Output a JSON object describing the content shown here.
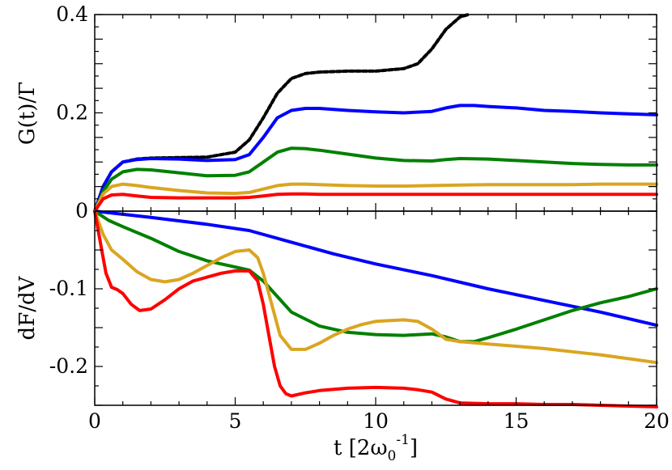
{
  "chart_data": [
    {
      "type": "line",
      "panel": "top",
      "title": "",
      "xlabel": "",
      "ylabel": "G(t)/Γ",
      "xlim": [
        0,
        20
      ],
      "ylim": [
        0,
        0.4
      ],
      "yticks": [
        {
          "value": 0,
          "label": "0"
        },
        {
          "value": 0.2,
          "label": "0.2"
        },
        {
          "value": 0.4,
          "label": "0.4"
        }
      ],
      "series": [
        {
          "name": "black-dotted",
          "color": "#000000",
          "dashed": true,
          "x": [
            0,
            0.3,
            0.6,
            1,
            1.5,
            2,
            3,
            4,
            5,
            5.5,
            6,
            6.5,
            7,
            7.5,
            8,
            9,
            10,
            11,
            11.5,
            12,
            12.5,
            13,
            13.3
          ],
          "y": [
            0,
            0.05,
            0.08,
            0.1,
            0.106,
            0.108,
            0.109,
            0.11,
            0.12,
            0.145,
            0.19,
            0.24,
            0.27,
            0.28,
            0.283,
            0.285,
            0.285,
            0.29,
            0.3,
            0.33,
            0.37,
            0.395,
            0.4
          ]
        },
        {
          "name": "blue",
          "color": "#0000ff",
          "dashed": false,
          "x": [
            0,
            0.3,
            0.6,
            1,
            1.5,
            2,
            3,
            4,
            5,
            5.5,
            6,
            6.5,
            7,
            7.5,
            8,
            9,
            10,
            11,
            12,
            12.5,
            13,
            13.5,
            14,
            15,
            16,
            17,
            18,
            19,
            20
          ],
          "y": [
            0,
            0.05,
            0.08,
            0.1,
            0.105,
            0.107,
            0.106,
            0.103,
            0.105,
            0.115,
            0.15,
            0.19,
            0.205,
            0.209,
            0.209,
            0.205,
            0.202,
            0.2,
            0.203,
            0.21,
            0.215,
            0.215,
            0.213,
            0.21,
            0.205,
            0.203,
            0.2,
            0.198,
            0.196
          ]
        },
        {
          "name": "green",
          "color": "#008000",
          "dashed": false,
          "x": [
            0,
            0.3,
            0.6,
            1,
            1.5,
            2,
            3,
            4,
            5,
            5.5,
            6,
            6.5,
            7,
            7.5,
            8,
            9,
            10,
            11,
            12,
            12.5,
            13,
            14,
            15,
            16,
            17,
            18,
            19,
            20
          ],
          "y": [
            0,
            0.04,
            0.065,
            0.08,
            0.085,
            0.084,
            0.078,
            0.072,
            0.073,
            0.08,
            0.1,
            0.12,
            0.128,
            0.127,
            0.124,
            0.116,
            0.108,
            0.103,
            0.102,
            0.105,
            0.107,
            0.106,
            0.103,
            0.1,
            0.097,
            0.095,
            0.094,
            0.094
          ]
        },
        {
          "name": "gold",
          "color": "#daa520",
          "dashed": false,
          "x": [
            0,
            0.3,
            0.6,
            1,
            1.5,
            2,
            3,
            4,
            5,
            5.5,
            6,
            6.5,
            7,
            7.5,
            8,
            9,
            10,
            11,
            12,
            13,
            14,
            15,
            16,
            17,
            18,
            19,
            20
          ],
          "y": [
            0,
            0.035,
            0.05,
            0.055,
            0.052,
            0.048,
            0.042,
            0.037,
            0.036,
            0.038,
            0.045,
            0.052,
            0.055,
            0.055,
            0.054,
            0.052,
            0.051,
            0.051,
            0.052,
            0.053,
            0.054,
            0.054,
            0.054,
            0.054,
            0.055,
            0.055,
            0.055
          ]
        },
        {
          "name": "red",
          "color": "#ff0000",
          "dashed": false,
          "x": [
            0,
            0.3,
            0.6,
            1,
            1.5,
            2,
            3,
            4,
            5,
            5.5,
            6,
            6.5,
            7,
            7.5,
            8,
            9,
            10,
            11,
            12,
            13,
            14,
            15,
            16,
            17,
            18,
            19,
            20
          ],
          "y": [
            0,
            0.025,
            0.033,
            0.034,
            0.031,
            0.028,
            0.027,
            0.027,
            0.027,
            0.028,
            0.031,
            0.034,
            0.035,
            0.035,
            0.034,
            0.034,
            0.034,
            0.034,
            0.034,
            0.034,
            0.034,
            0.034,
            0.034,
            0.034,
            0.034,
            0.034,
            0.034
          ]
        }
      ]
    },
    {
      "type": "line",
      "panel": "bottom",
      "title": "",
      "xlabel": "t [2ω",
      "xlabel_sub": "0",
      "xlabel_sup": "-1",
      "xlabel_end": "]",
      "ylabel": "dF/dV",
      "xlim": [
        0,
        20
      ],
      "ylim": [
        -0.25,
        0
      ],
      "xticks": [
        {
          "value": 0,
          "label": "0"
        },
        {
          "value": 5,
          "label": "5"
        },
        {
          "value": 10,
          "label": "10"
        },
        {
          "value": 15,
          "label": "15"
        },
        {
          "value": 20,
          "label": "20"
        }
      ],
      "yticks": [
        {
          "value": -0.1,
          "label": "-0.1"
        },
        {
          "value": -0.2,
          "label": "-0.2"
        }
      ],
      "series": [
        {
          "name": "blue",
          "color": "#0000ff",
          "x": [
            0,
            2,
            4,
            5.5,
            7,
            8.5,
            10,
            12,
            14,
            16,
            18,
            20
          ],
          "y": [
            0,
            -0.008,
            -0.017,
            -0.025,
            -0.04,
            -0.055,
            -0.068,
            -0.083,
            -0.1,
            -0.115,
            -0.13,
            -0.147
          ]
        },
        {
          "name": "green",
          "color": "#008000",
          "x": [
            0,
            0.5,
            1,
            2,
            3,
            4,
            5,
            5.5,
            6,
            6.5,
            7,
            8,
            9,
            10,
            11,
            12,
            12.5,
            13,
            13.5,
            14,
            15,
            16,
            17,
            18,
            19,
            20
          ],
          "y": [
            0,
            -0.012,
            -0.02,
            -0.035,
            -0.052,
            -0.064,
            -0.072,
            -0.076,
            -0.09,
            -0.11,
            -0.13,
            -0.148,
            -0.156,
            -0.159,
            -0.16,
            -0.158,
            -0.162,
            -0.168,
            -0.168,
            -0.163,
            -0.152,
            -0.14,
            -0.128,
            -0.118,
            -0.11,
            -0.1
          ]
        },
        {
          "name": "gold",
          "color": "#daa520",
          "x": [
            0,
            0.3,
            0.6,
            1,
            1.5,
            2,
            2.5,
            3,
            3.5,
            4,
            4.5,
            5,
            5.5,
            5.8,
            6,
            6.3,
            6.6,
            7,
            7.5,
            8,
            8.5,
            9,
            9.5,
            10,
            11,
            11.5,
            12,
            12.5,
            13,
            14,
            15,
            16,
            17,
            18,
            19,
            20
          ],
          "y": [
            0,
            -0.03,
            -0.05,
            -0.062,
            -0.078,
            -0.088,
            -0.091,
            -0.088,
            -0.08,
            -0.07,
            -0.06,
            -0.052,
            -0.05,
            -0.06,
            -0.08,
            -0.12,
            -0.16,
            -0.178,
            -0.178,
            -0.17,
            -0.16,
            -0.152,
            -0.146,
            -0.142,
            -0.14,
            -0.142,
            -0.152,
            -0.165,
            -0.168,
            -0.171,
            -0.174,
            -0.177,
            -0.181,
            -0.185,
            -0.19,
            -0.195
          ]
        },
        {
          "name": "red",
          "color": "#ff0000",
          "x": [
            0,
            0.2,
            0.4,
            0.6,
            0.8,
            1,
            1.3,
            1.6,
            2,
            2.5,
            3,
            3.5,
            4,
            4.5,
            5,
            5.5,
            5.8,
            6,
            6.2,
            6.4,
            6.6,
            6.8,
            7,
            7.5,
            8,
            9,
            10,
            11,
            11.5,
            12,
            12.5,
            13,
            14,
            15,
            16,
            17,
            18,
            19,
            20
          ],
          "y": [
            0,
            -0.04,
            -0.08,
            -0.098,
            -0.101,
            -0.106,
            -0.12,
            -0.128,
            -0.126,
            -0.114,
            -0.1,
            -0.09,
            -0.085,
            -0.08,
            -0.077,
            -0.077,
            -0.09,
            -0.12,
            -0.16,
            -0.2,
            -0.225,
            -0.235,
            -0.238,
            -0.234,
            -0.231,
            -0.228,
            -0.227,
            -0.228,
            -0.23,
            -0.233,
            -0.242,
            -0.247,
            -0.248,
            -0.248,
            -0.249,
            -0.249,
            -0.25,
            -0.251,
            -0.252
          ]
        }
      ]
    }
  ]
}
